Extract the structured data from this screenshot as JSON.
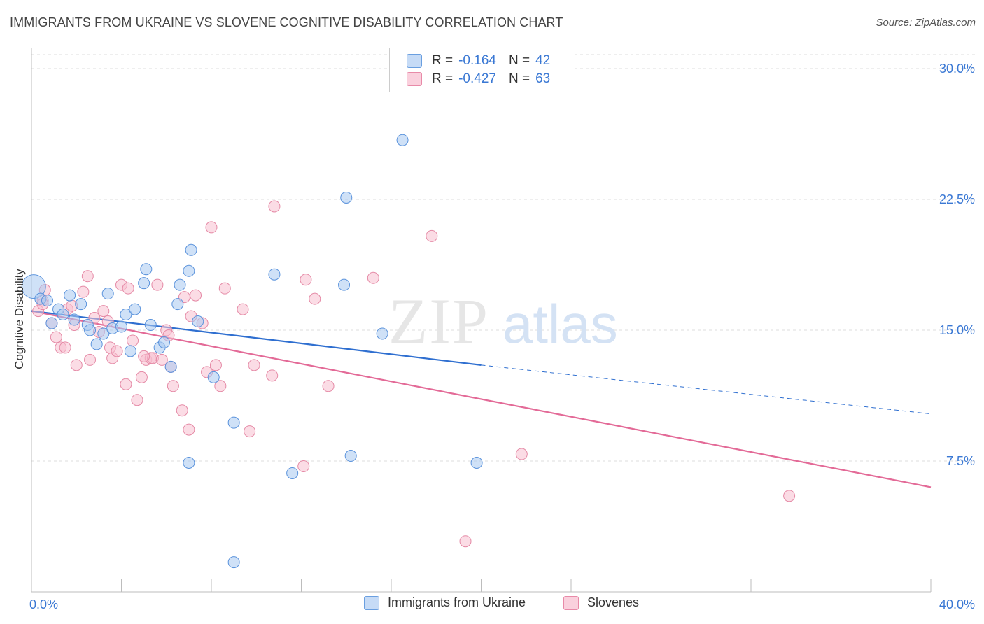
{
  "title": "IMMIGRANTS FROM UKRAINE VS SLOVENE COGNITIVE DISABILITY CORRELATION CHART",
  "source": "Source: ZipAtlas.com",
  "watermark": {
    "zip": "ZIP",
    "atlas": "atlas"
  },
  "legend": {
    "rows": [
      {
        "r_label": "R =",
        "r_value": "-0.164",
        "n_label": "N =",
        "n_value": "42",
        "color": "#a8c8f0",
        "border": "#6a9fe0"
      },
      {
        "r_label": "R =",
        "r_value": "-0.427",
        "n_label": "N =",
        "n_value": "63",
        "color": "#f7c0d0",
        "border": "#e88aa8"
      }
    ]
  },
  "colors": {
    "ukraine_fill": "#a8c8f0",
    "ukraine_stroke": "#5b93dc",
    "ukraine_line": "#2f6fd0",
    "slovene_fill": "#f7c0d0",
    "slovene_stroke": "#e58aa6",
    "slovene_line": "#e36a97",
    "tick_label": "#3a78d4",
    "grid": "#dcdcdc"
  },
  "chart_data": {
    "type": "scatter",
    "title": "IMMIGRANTS FROM UKRAINE VS SLOVENE COGNITIVE DISABILITY CORRELATION CHART",
    "xlabel": "",
    "ylabel": "Cognitive Disability",
    "xlim": [
      0,
      40
    ],
    "ylim": [
      0,
      31
    ],
    "x_ticks": [
      {
        "value": 0,
        "label": "0.0%"
      },
      {
        "value": 40,
        "label": "40.0%"
      }
    ],
    "y_ticks": [
      {
        "value": 7.5,
        "label": "7.5%"
      },
      {
        "value": 15,
        "label": "15.0%"
      },
      {
        "value": 22.5,
        "label": "22.5%"
      },
      {
        "value": 30,
        "label": "30.0%"
      }
    ],
    "series": [
      {
        "name": "Immigrants from Ukraine",
        "points": [
          [
            0.1,
            17.5
          ],
          [
            0.4,
            16.8
          ],
          [
            0.7,
            16.7
          ],
          [
            0.9,
            15.4
          ],
          [
            1.2,
            16.2
          ],
          [
            1.4,
            15.9
          ],
          [
            1.7,
            17.0
          ],
          [
            1.9,
            15.6
          ],
          [
            2.2,
            16.5
          ],
          [
            2.5,
            15.3
          ],
          [
            2.6,
            15.0
          ],
          [
            2.9,
            14.2
          ],
          [
            3.2,
            14.8
          ],
          [
            3.4,
            17.1
          ],
          [
            3.6,
            15.1
          ],
          [
            4.0,
            15.2
          ],
          [
            4.2,
            15.9
          ],
          [
            4.4,
            13.8
          ],
          [
            4.6,
            16.2
          ],
          [
            5.0,
            17.7
          ],
          [
            5.1,
            18.5
          ],
          [
            5.3,
            15.3
          ],
          [
            5.7,
            14.0
          ],
          [
            5.9,
            14.3
          ],
          [
            6.2,
            12.9
          ],
          [
            6.5,
            16.5
          ],
          [
            6.6,
            17.6
          ],
          [
            7.0,
            18.4
          ],
          [
            7.1,
            19.6
          ],
          [
            7.4,
            15.5
          ],
          [
            8.1,
            12.3
          ],
          [
            9.0,
            1.7
          ],
          [
            9.0,
            9.7
          ],
          [
            10.8,
            18.2
          ],
          [
            13.9,
            17.6
          ],
          [
            14.0,
            22.6
          ],
          [
            14.2,
            7.8
          ],
          [
            15.6,
            14.8
          ],
          [
            16.5,
            25.9
          ],
          [
            19.8,
            7.4
          ],
          [
            7.0,
            7.4
          ],
          [
            11.6,
            6.8
          ]
        ],
        "trend": {
          "x_solid": [
            0,
            20
          ],
          "y_solid": [
            16.1,
            13.0
          ],
          "x_dashed": [
            20,
            40
          ],
          "y_dashed": [
            13.0,
            10.2
          ]
        }
      },
      {
        "name": "Slovenes",
        "points": [
          [
            0.3,
            16.1
          ],
          [
            0.5,
            16.7
          ],
          [
            0.6,
            17.3
          ],
          [
            0.9,
            15.4
          ],
          [
            1.1,
            14.6
          ],
          [
            1.3,
            14.0
          ],
          [
            1.5,
            14.0
          ],
          [
            1.6,
            16.2
          ],
          [
            1.8,
            16.4
          ],
          [
            1.9,
            15.3
          ],
          [
            2.0,
            13.0
          ],
          [
            2.3,
            17.2
          ],
          [
            2.5,
            18.1
          ],
          [
            2.6,
            13.3
          ],
          [
            2.8,
            15.7
          ],
          [
            3.0,
            14.9
          ],
          [
            3.2,
            16.1
          ],
          [
            3.4,
            15.5
          ],
          [
            3.5,
            14.0
          ],
          [
            3.6,
            13.4
          ],
          [
            3.8,
            13.8
          ],
          [
            4.0,
            17.6
          ],
          [
            4.2,
            11.9
          ],
          [
            4.3,
            17.4
          ],
          [
            4.5,
            14.4
          ],
          [
            4.7,
            11.0
          ],
          [
            4.9,
            12.3
          ],
          [
            5.1,
            13.3
          ],
          [
            5.3,
            13.4
          ],
          [
            5.4,
            13.4
          ],
          [
            5.6,
            17.6
          ],
          [
            5.8,
            13.3
          ],
          [
            6.0,
            15.0
          ],
          [
            6.1,
            14.7
          ],
          [
            6.2,
            12.9
          ],
          [
            6.3,
            11.8
          ],
          [
            6.7,
            10.4
          ],
          [
            6.8,
            16.9
          ],
          [
            7.0,
            9.3
          ],
          [
            7.1,
            15.8
          ],
          [
            7.3,
            17.0
          ],
          [
            7.6,
            15.4
          ],
          [
            7.8,
            12.6
          ],
          [
            8.0,
            20.9
          ],
          [
            8.2,
            13.0
          ],
          [
            8.4,
            11.8
          ],
          [
            8.6,
            17.4
          ],
          [
            9.4,
            16.2
          ],
          [
            9.7,
            9.2
          ],
          [
            9.9,
            13.0
          ],
          [
            10.7,
            12.4
          ],
          [
            10.8,
            22.1
          ],
          [
            12.1,
            7.2
          ],
          [
            12.2,
            17.9
          ],
          [
            12.6,
            16.8
          ],
          [
            13.2,
            11.8
          ],
          [
            15.2,
            18.0
          ],
          [
            17.8,
            20.4
          ],
          [
            19.3,
            2.9
          ],
          [
            21.8,
            7.9
          ],
          [
            33.7,
            5.5
          ],
          [
            0.5,
            16.5
          ],
          [
            5.0,
            13.5
          ]
        ],
        "trend": {
          "x_solid": [
            0,
            40
          ],
          "y_solid": [
            16.1,
            6.0
          ]
        }
      }
    ]
  }
}
